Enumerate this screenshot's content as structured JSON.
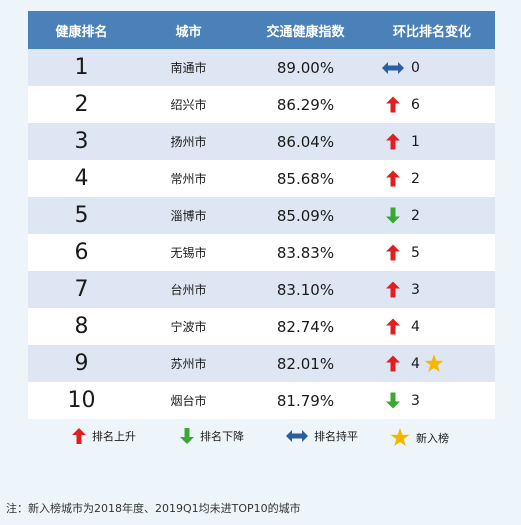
{
  "chart_data": {
    "type": "table",
    "columns": [
      "健康排名",
      "城市",
      "交通健康指数",
      "环比排名变化"
    ],
    "rows": [
      {
        "rank": "1",
        "city": "南通市",
        "index": "89.00%",
        "change_dir": "flat",
        "change": "0",
        "new": false
      },
      {
        "rank": "2",
        "city": "绍兴市",
        "index": "86.29%",
        "change_dir": "up",
        "change": "6",
        "new": false
      },
      {
        "rank": "3",
        "city": "扬州市",
        "index": "86.04%",
        "change_dir": "up",
        "change": "1",
        "new": false
      },
      {
        "rank": "4",
        "city": "常州市",
        "index": "85.68%",
        "change_dir": "up",
        "change": "2",
        "new": false
      },
      {
        "rank": "5",
        "city": "淄博市",
        "index": "85.09%",
        "change_dir": "down",
        "change": "2",
        "new": false
      },
      {
        "rank": "6",
        "city": "无锡市",
        "index": "83.83%",
        "change_dir": "up",
        "change": "5",
        "new": false
      },
      {
        "rank": "7",
        "city": "台州市",
        "index": "83.10%",
        "change_dir": "up",
        "change": "3",
        "new": false
      },
      {
        "rank": "8",
        "city": "宁波市",
        "index": "82.74%",
        "change_dir": "up",
        "change": "4",
        "new": false
      },
      {
        "rank": "9",
        "city": "苏州市",
        "index": "82.01%",
        "change_dir": "up",
        "change": "4",
        "new": true
      },
      {
        "rank": "10",
        "city": "烟台市",
        "index": "81.79%",
        "change_dir": "down",
        "change": "3",
        "new": false
      }
    ],
    "legend": [
      {
        "icon": "up",
        "label": "排名上升"
      },
      {
        "icon": "down",
        "label": "排名下降"
      },
      {
        "icon": "flat",
        "label": "排名持平"
      },
      {
        "icon": "star",
        "label": "新入榜"
      }
    ],
    "note": "注：新入榜城市为2018年度、2019Q1均未进TOP10的城市"
  },
  "colors": {
    "header_bg": "#4a81b8",
    "row_odd": "#dfe6f3",
    "row_even": "#ffffff",
    "page_bg": "#eef5fa",
    "up_arrow": "#e02020",
    "down_arrow": "#3aa832",
    "flat_arrow": "#2a5e9e",
    "star": "#f5b800"
  }
}
